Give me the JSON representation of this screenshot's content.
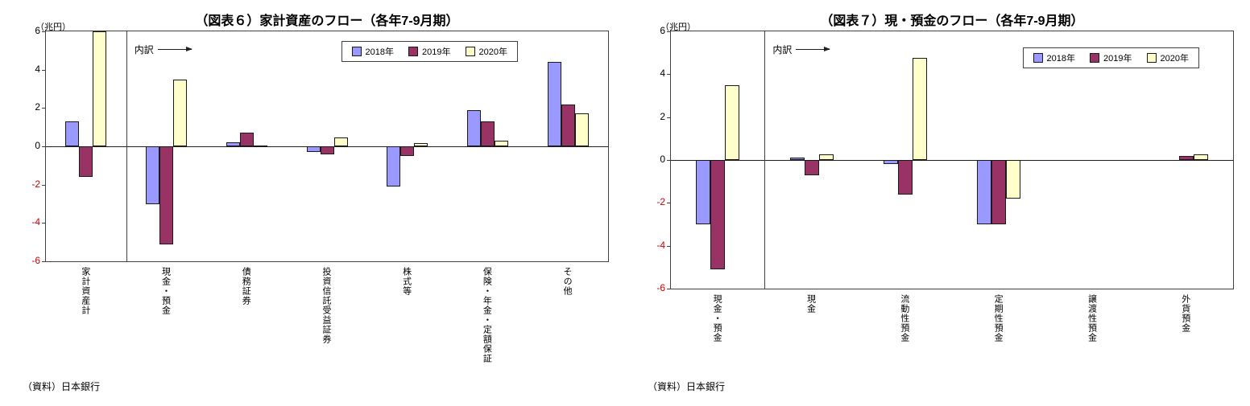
{
  "colors": {
    "negative_tick": "#cc0000",
    "axis": "#404040"
  },
  "charts": [
    {
      "title": "（図表６）家計資産のフロー（各年7-9月期）",
      "unit_label": "（兆円）",
      "breakdown_label": "内訳",
      "source": "（資料）日本銀行",
      "chart_data": {
        "type": "bar",
        "categories": [
          "家計資産計",
          "現金・預金",
          "債務証券",
          "投資信託受益証券",
          "株式等",
          "保険・年金・定額保証",
          "その他"
        ],
        "series": [
          {
            "name": "2018年",
            "color": "#9999ff",
            "values": [
              1.3,
              -3.0,
              0.2,
              -0.3,
              -2.1,
              1.9,
              4.4
            ]
          },
          {
            "name": "2019年",
            "color": "#993366",
            "values": [
              -1.6,
              -5.1,
              0.7,
              -0.4,
              -0.5,
              1.3,
              2.2
            ]
          },
          {
            "name": "2020年",
            "color": "#ffffcc",
            "values": [
              6.0,
              3.5,
              0.05,
              0.45,
              0.15,
              0.3,
              1.7
            ]
          }
        ],
        "ylim": [
          -6,
          6
        ],
        "ytick_step": 2,
        "separator_after_category": 0,
        "grid": false,
        "legend_position": "top-right"
      }
    },
    {
      "title": "（図表７）現・預金のフロー（各年7-9月期）",
      "unit_label": "（兆円）",
      "breakdown_label": "内訳",
      "source": "（資料）日本銀行",
      "chart_data": {
        "type": "bar",
        "categories": [
          "現金・預金",
          "現金",
          "流動性預金",
          "定期性預金",
          "譲渡性預金",
          "外貨預金"
        ],
        "series": [
          {
            "name": "2018年",
            "color": "#9999ff",
            "values": [
              -3.0,
              0.1,
              -0.2,
              -3.0,
              0,
              0
            ]
          },
          {
            "name": "2019年",
            "color": "#993366",
            "values": [
              -5.1,
              -0.7,
              -1.6,
              -3.0,
              0,
              0.2
            ]
          },
          {
            "name": "2020年",
            "color": "#ffffcc",
            "values": [
              3.5,
              0.25,
              4.75,
              -1.8,
              0,
              0.25
            ]
          }
        ],
        "ylim": [
          -6,
          6
        ],
        "ytick_step": 2,
        "separator_after_category": 0,
        "grid": false,
        "legend_position": "top-right"
      }
    }
  ]
}
